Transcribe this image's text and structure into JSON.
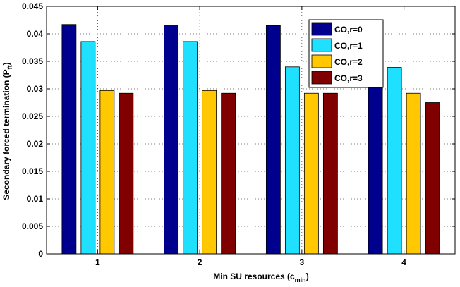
{
  "chart_data": {
    "type": "bar",
    "categories": [
      "1",
      "2",
      "3",
      "4"
    ],
    "series": [
      {
        "name": "CO,r=0",
        "values": [
          0.0417,
          0.0416,
          0.0415,
          0.0405
        ],
        "color": "#00008f"
      },
      {
        "name": "CO,r=1",
        "values": [
          0.0386,
          0.0386,
          0.034,
          0.0339
        ],
        "color": "#20e0ff"
      },
      {
        "name": "CO,r=2",
        "values": [
          0.0297,
          0.0297,
          0.0292,
          0.0292
        ],
        "color": "#ffc800"
      },
      {
        "name": "CO,r=3",
        "values": [
          0.0292,
          0.0292,
          0.0292,
          0.0275
        ],
        "color": "#800000"
      }
    ],
    "xlabel": {
      "text": "Min SU resources (c",
      "sub": "min",
      "close": ")"
    },
    "ylabel": {
      "text": "Secondary forced termination (P",
      "sub": "ft",
      "close": ")"
    },
    "ylim": [
      0,
      0.045
    ],
    "yticks": [
      "0",
      "0.005",
      "0.01",
      "0.015",
      "0.02",
      "0.025",
      "0.03",
      "0.035",
      "0.04",
      "0.045"
    ],
    "grid": true,
    "legend_position": "top-right"
  }
}
